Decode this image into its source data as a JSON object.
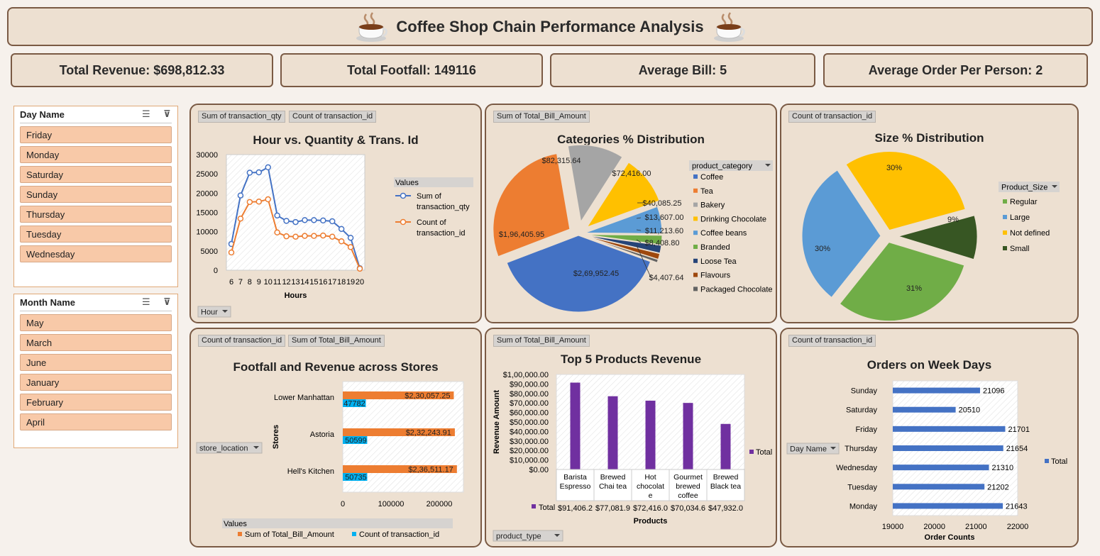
{
  "title": "Coffee Shop Chain Performance Analysis",
  "kpis": {
    "revenue": "Total Revenue: $698,812.33",
    "footfall": "Total Footfall: 149116",
    "bill": "Average Bill: 5",
    "order": "Average Order Per Person: 2"
  },
  "slicers": {
    "day": {
      "title": "Day Name",
      "items": [
        "Friday",
        "Monday",
        "Saturday",
        "Sunday",
        "Thursday",
        "Tuesday",
        "Wednesday"
      ]
    },
    "month": {
      "title": "Month Name",
      "items": [
        "May",
        "March",
        "June",
        "January",
        "February",
        "April"
      ]
    }
  },
  "panels": {
    "hour": {
      "tags": [
        "Sum of transaction_qty",
        "Count of transaction_id"
      ],
      "title": "Hour vs. Quantity & Trans. Id",
      "filter": "Hour",
      "legend_title": "Values"
    },
    "categories": {
      "tags": [
        "Sum of Total_Bill_Amount"
      ],
      "title": "Categories % Distribution",
      "legend_title": "product_category"
    },
    "size": {
      "tags": [
        "Count of transaction_id"
      ],
      "title": "Size % Distribution",
      "legend_title": "Product_Size"
    },
    "stores": {
      "tags": [
        "Count of transaction_id",
        "Sum of Total_Bill_Amount"
      ],
      "title": "Footfall and Revenue across Stores",
      "filter": "store_location",
      "legend_title": "Values"
    },
    "products": {
      "tags": [
        "Sum of Total_Bill_Amount"
      ],
      "title": "Top 5 Products Revenue",
      "filter": "product_type"
    },
    "weekdays": {
      "tags": [
        "Count of transaction_id"
      ],
      "title": "Orders on Week Days",
      "filter": "Day Name"
    }
  },
  "chart_data": [
    {
      "id": "hour",
      "type": "line",
      "x": [
        6,
        7,
        8,
        9,
        10,
        11,
        12,
        13,
        14,
        15,
        16,
        17,
        18,
        19,
        20
      ],
      "series": [
        {
          "name": "Sum of transaction_qty",
          "values": [
            6800,
            19400,
            25300,
            25400,
            26700,
            14200,
            12800,
            12500,
            13000,
            13000,
            12900,
            12700,
            10700,
            8400,
            500
          ],
          "color": "#4472c4"
        },
        {
          "name": "Count of transaction_id",
          "values": [
            4600,
            13400,
            17700,
            17800,
            18400,
            9800,
            8800,
            8700,
            8900,
            8900,
            9000,
            8700,
            7500,
            6000,
            400
          ],
          "color": "#ed7d31"
        }
      ],
      "ylim": [
        0,
        30000
      ],
      "yticks": [
        0,
        5000,
        10000,
        15000,
        20000,
        25000,
        30000
      ],
      "xlabel": "Hours"
    },
    {
      "id": "categories",
      "type": "pie",
      "categories": [
        "Coffee",
        "Tea",
        "Bakery",
        "Drinking Chocolate",
        "Coffee beans",
        "Branded",
        "Loose Tea",
        "Flavours",
        "Packaged Chocolate"
      ],
      "values": [
        269952.45,
        196405.95,
        82315.64,
        72416.0,
        40085.25,
        13607.0,
        11213.6,
        8408.8,
        4407.64
      ],
      "labels": [
        "$2,69,952.45",
        "$1,96,405.95",
        "$82,315.64",
        "$72,416.00",
        "$40,085.25",
        "$13,607.00",
        "$11,213.60",
        "$8,408.80",
        "$4,407.64"
      ],
      "colors": [
        "#4472c4",
        "#ed7d31",
        "#a5a5a5",
        "#ffc000",
        "#5b9bd5",
        "#70ad47",
        "#264478",
        "#9e480e",
        "#636363"
      ]
    },
    {
      "id": "size",
      "type": "pie",
      "categories": [
        "Regular",
        "Large",
        "Not defined",
        "Small"
      ],
      "values": [
        31,
        30,
        30,
        9
      ],
      "labels": [
        "31%",
        "30%",
        "30%",
        "9%"
      ],
      "colors": [
        "#70ad47",
        "#5b9bd5",
        "#ffc000",
        "#375623"
      ]
    },
    {
      "id": "stores",
      "type": "bar",
      "orientation": "horizontal",
      "ylabel": "Stores",
      "categories": [
        "Lower Manhattan",
        "Astoria",
        "Hell's Kitchen"
      ],
      "series": [
        {
          "name": "Sum of Total_Bill_Amount",
          "values": [
            230057.25,
            232243.91,
            236511.17
          ],
          "labels": [
            "$2,30,057.25",
            "$2,32,243.91",
            "$2,36,511.17"
          ],
          "color": "#ed7d31"
        },
        {
          "name": "Count of transaction_id",
          "values": [
            47782,
            50599,
            50735
          ],
          "labels": [
            "47782",
            "50599",
            "50735"
          ],
          "color": "#00b0f0"
        }
      ],
      "xlim": [
        0,
        250000
      ],
      "xticks": [
        0,
        100000,
        200000
      ],
      "xtick_labels": [
        "0",
        "100000",
        "200000"
      ]
    },
    {
      "id": "products",
      "type": "bar",
      "categories": [
        "Barista Espresso",
        "Brewed Chai tea",
        "Hot chocolate",
        "Gourmet brewed coffee",
        "Brewed Black tea"
      ],
      "category_lines": [
        [
          "Barista",
          "Espresso"
        ],
        [
          "Brewed",
          "Chai tea"
        ],
        [
          "Hot",
          "chocolat",
          "e"
        ],
        [
          "Gourmet",
          "brewed",
          "coffee"
        ],
        [
          "Brewed",
          "Black tea"
        ]
      ],
      "values": [
        91406.2,
        77081.9,
        72416.0,
        70034.6,
        47932.0
      ],
      "value_labels": [
        "$91,406.2",
        "$77,081.9",
        "$72,416.0",
        "$70,034.6",
        "$47,932.0"
      ],
      "series_name": "Total",
      "color": "#7030a0",
      "ylim": [
        0,
        100000
      ],
      "yticks": [
        0,
        10000,
        20000,
        30000,
        40000,
        50000,
        60000,
        70000,
        80000,
        90000,
        100000
      ],
      "ytick_labels": [
        "$0.00",
        "$10,000.00",
        "$20,000.00",
        "$30,000.00",
        "$40,000.00",
        "$50,000.00",
        "$60,000.00",
        "$70,000.00",
        "$80,000.00",
        "$90,000.00",
        "$1,00,000.00"
      ],
      "xlabel": "Products",
      "ylabel": "Revenue Amount"
    },
    {
      "id": "weekdays",
      "type": "bar",
      "orientation": "horizontal",
      "categories": [
        "Sunday",
        "Saturday",
        "Friday",
        "Thursday",
        "Wednesday",
        "Tuesday",
        "Monday"
      ],
      "values": [
        21096,
        20510,
        21701,
        21654,
        21310,
        21202,
        21643
      ],
      "series_name": "Total",
      "color": "#4472c4",
      "xlim": [
        19000,
        22000
      ],
      "xticks": [
        19000,
        20000,
        21000,
        22000
      ],
      "xlabel": "Order Counts"
    }
  ]
}
